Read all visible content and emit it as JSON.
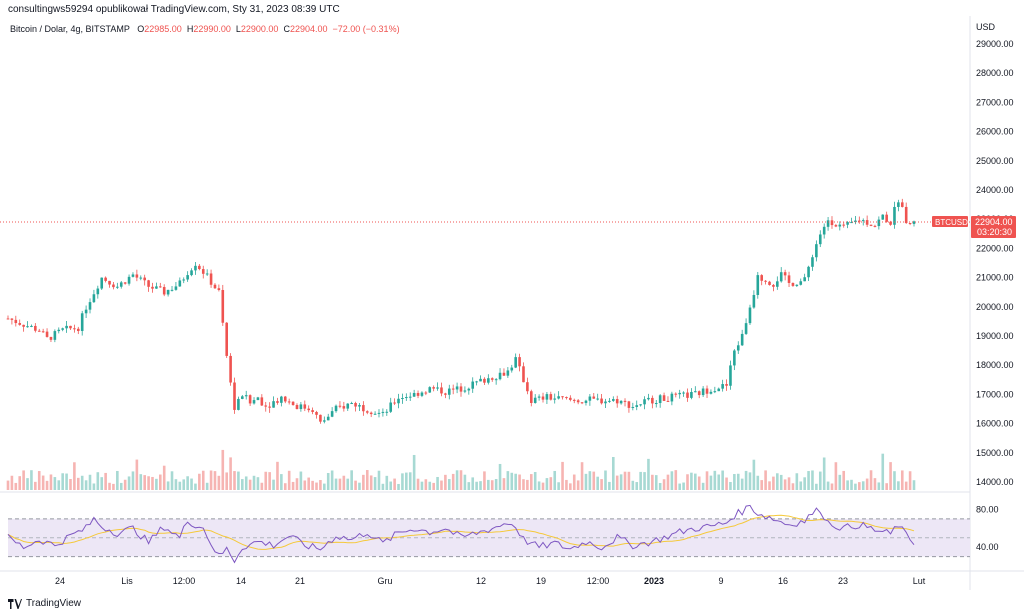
{
  "header": {
    "published_by": "consultingws59294 opublikował TradingView.com, Sty 31, 2023 08:39 UTC"
  },
  "legend": {
    "symbol": "Bitcoin / Dolar, 4g, BITSTAMP",
    "o_label": "O",
    "o_value": "22985.00",
    "h_label": "H",
    "h_value": "22990.00",
    "l_label": "L",
    "l_value": "22900.00",
    "c_label": "C",
    "c_value": "22904.00",
    "change": "−72.00 (−0.31%)"
  },
  "price_axis": {
    "currency": "USD",
    "ticks": [
      "29000.00",
      "28000.00",
      "27000.00",
      "26000.00",
      "25000.00",
      "24000.00",
      "23000.00",
      "22000.00",
      "21000.00",
      "20000.00",
      "19000.00",
      "18000.00",
      "17000.00",
      "16000.00",
      "15000.00",
      "14000.00"
    ],
    "last_price": "22904.00",
    "countdown": "03:20:30",
    "ticker": "BTCUSD"
  },
  "rsi_axis": {
    "ticks": [
      "80.00",
      "40.00"
    ]
  },
  "time_axis": {
    "ticks": [
      "24",
      "Lis",
      "12:00",
      "14",
      "21",
      "Gru",
      "12",
      "19",
      "12:00",
      "2023",
      "9",
      "16",
      "23",
      "Lut"
    ]
  },
  "footer": {
    "brand": "TradingView"
  },
  "colors": {
    "up": "#26a69a",
    "down": "#ef5350",
    "rsi": "#7e57c2",
    "rsi_ma": "#f5c93a",
    "band": "#ede7f6"
  },
  "chart_data": {
    "type": "candlestick",
    "symbol": "BTCUSD",
    "interval": "4h",
    "ylim": [
      13800,
      29500
    ],
    "price_path": [
      [
        0,
        19600
      ],
      [
        4,
        19400
      ],
      [
        8,
        19200
      ],
      [
        10,
        18900
      ],
      [
        14,
        19200
      ],
      [
        18,
        19300
      ],
      [
        20,
        20000
      ],
      [
        24,
        21000
      ],
      [
        28,
        20700
      ],
      [
        32,
        21100
      ],
      [
        36,
        20700
      ],
      [
        40,
        20500
      ],
      [
        44,
        20800
      ],
      [
        46,
        21200
      ],
      [
        48,
        21500
      ],
      [
        50,
        21200
      ],
      [
        54,
        20500
      ],
      [
        56,
        18300
      ],
      [
        58,
        16500
      ],
      [
        60,
        17000
      ],
      [
        62,
        16700
      ],
      [
        64,
        16900
      ],
      [
        66,
        16600
      ],
      [
        70,
        16900
      ],
      [
        74,
        16600
      ],
      [
        78,
        16500
      ],
      [
        80,
        16000
      ],
      [
        84,
        16500
      ],
      [
        88,
        16700
      ],
      [
        92,
        16500
      ],
      [
        96,
        16300
      ],
      [
        100,
        16900
      ],
      [
        104,
        17000
      ],
      [
        108,
        17200
      ],
      [
        112,
        17100
      ],
      [
        116,
        17200
      ],
      [
        120,
        17400
      ],
      [
        124,
        17600
      ],
      [
        128,
        17800
      ],
      [
        130,
        18200
      ],
      [
        132,
        17500
      ],
      [
        134,
        16800
      ],
      [
        138,
        16900
      ],
      [
        144,
        16800
      ],
      [
        150,
        16800
      ],
      [
        156,
        16800
      ],
      [
        160,
        16600
      ],
      [
        164,
        16800
      ],
      [
        170,
        16900
      ],
      [
        176,
        17000
      ],
      [
        180,
        17200
      ],
      [
        184,
        17300
      ],
      [
        186,
        18500
      ],
      [
        188,
        19000
      ],
      [
        190,
        20000
      ],
      [
        192,
        21000
      ],
      [
        196,
        20800
      ],
      [
        198,
        21100
      ],
      [
        200,
        20800
      ],
      [
        204,
        20900
      ],
      [
        206,
        21800
      ],
      [
        208,
        22500
      ],
      [
        210,
        23000
      ],
      [
        214,
        22700
      ],
      [
        218,
        23000
      ],
      [
        222,
        22800
      ],
      [
        224,
        23100
      ],
      [
        226,
        22900
      ],
      [
        228,
        23700
      ],
      [
        230,
        23000
      ],
      [
        232,
        22904
      ]
    ],
    "rsi_range": [
      20,
      90
    ],
    "rsi_levels": [
      70,
      50,
      30
    ],
    "rsi_path": [
      [
        0,
        50
      ],
      [
        4,
        40
      ],
      [
        8,
        48
      ],
      [
        12,
        42
      ],
      [
        16,
        52
      ],
      [
        20,
        60
      ],
      [
        22,
        70
      ],
      [
        24,
        62
      ],
      [
        28,
        55
      ],
      [
        32,
        60
      ],
      [
        36,
        45
      ],
      [
        40,
        62
      ],
      [
        44,
        50
      ],
      [
        46,
        68
      ],
      [
        50,
        60
      ],
      [
        52,
        44
      ],
      [
        54,
        30
      ],
      [
        56,
        38
      ],
      [
        58,
        26
      ],
      [
        60,
        40
      ],
      [
        64,
        46
      ],
      [
        68,
        42
      ],
      [
        72,
        52
      ],
      [
        76,
        42
      ],
      [
        80,
        38
      ],
      [
        84,
        52
      ],
      [
        88,
        48
      ],
      [
        92,
        56
      ],
      [
        96,
        44
      ],
      [
        100,
        55
      ],
      [
        104,
        60
      ],
      [
        108,
        56
      ],
      [
        112,
        60
      ],
      [
        116,
        50
      ],
      [
        120,
        55
      ],
      [
        124,
        60
      ],
      [
        128,
        66
      ],
      [
        130,
        62
      ],
      [
        132,
        48
      ],
      [
        136,
        40
      ],
      [
        140,
        44
      ],
      [
        144,
        38
      ],
      [
        148,
        46
      ],
      [
        152,
        40
      ],
      [
        156,
        50
      ],
      [
        160,
        42
      ],
      [
        164,
        45
      ],
      [
        168,
        50
      ],
      [
        172,
        56
      ],
      [
        176,
        60
      ],
      [
        180,
        62
      ],
      [
        184,
        66
      ],
      [
        186,
        74
      ],
      [
        188,
        78
      ],
      [
        190,
        84
      ],
      [
        192,
        76
      ],
      [
        196,
        70
      ],
      [
        200,
        64
      ],
      [
        204,
        68
      ],
      [
        206,
        76
      ],
      [
        208,
        80
      ],
      [
        210,
        66
      ],
      [
        214,
        60
      ],
      [
        218,
        64
      ],
      [
        222,
        58
      ],
      [
        226,
        54
      ],
      [
        228,
        64
      ],
      [
        230,
        52
      ],
      [
        232,
        45
      ]
    ]
  }
}
